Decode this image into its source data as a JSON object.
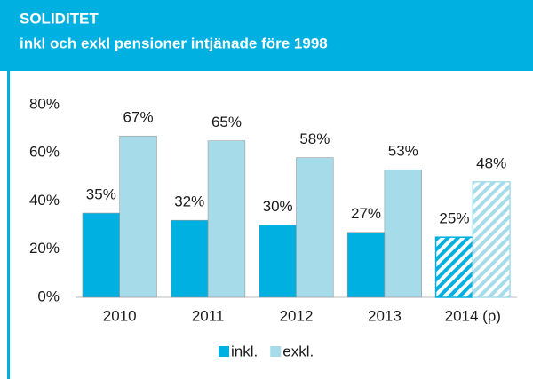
{
  "chart_data": {
    "type": "bar",
    "title": "SOLIDITET",
    "subtitle": "inkl och exkl pensioner intjänade före 1998",
    "categories": [
      "2010",
      "2011",
      "2012",
      "2013",
      "2014 (p)"
    ],
    "series": [
      {
        "name": "inkl.",
        "color": "#00b0e0",
        "values": [
          35,
          32,
          30,
          27,
          25
        ],
        "value_labels": [
          "35%",
          "32%",
          "30%",
          "27%",
          "25%"
        ]
      },
      {
        "name": "exkl.",
        "color": "#a6dce9",
        "values": [
          67,
          65,
          58,
          53,
          48
        ],
        "value_labels": [
          "67%",
          "65%",
          "58%",
          "53%",
          "48%"
        ]
      }
    ],
    "hatch": [
      false,
      false,
      false,
      false,
      true
    ],
    "ylim": [
      0,
      80
    ],
    "yticks": [
      {
        "value": 0,
        "label": "0%"
      },
      {
        "value": 20,
        "label": "20%"
      },
      {
        "value": 40,
        "label": "40%"
      },
      {
        "value": 60,
        "label": "60%"
      },
      {
        "value": 80,
        "label": "80%"
      }
    ],
    "grid": false,
    "legend": "bottom"
  }
}
